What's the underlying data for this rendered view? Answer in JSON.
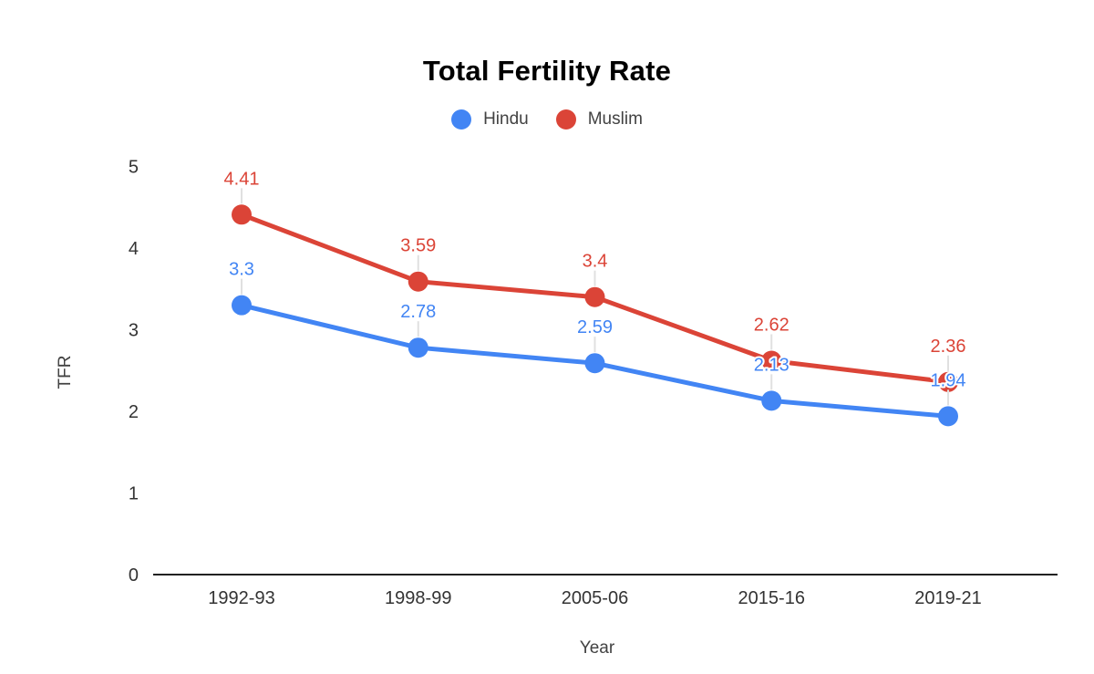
{
  "chart_data": {
    "type": "line",
    "title": "Total Fertility Rate",
    "xlabel": "Year",
    "ylabel": "TFR",
    "categories": [
      "1992-93",
      "1998-99",
      "2005-06",
      "2015-16",
      "2019-21"
    ],
    "series": [
      {
        "name": "Hindu",
        "color": "#4285f4",
        "values": [
          3.3,
          2.78,
          2.59,
          2.13,
          1.94
        ]
      },
      {
        "name": "Muslim",
        "color": "#db4437",
        "values": [
          4.41,
          3.59,
          3.4,
          2.62,
          2.36
        ]
      }
    ],
    "ylim": [
      0,
      5
    ],
    "ytick_step": 1,
    "legend_position": "top",
    "grid": false,
    "background_color": "#ffffff",
    "axis_line_color": "#212121",
    "callout_line_color": "#e0e0e0",
    "point_labels_shown": true
  }
}
